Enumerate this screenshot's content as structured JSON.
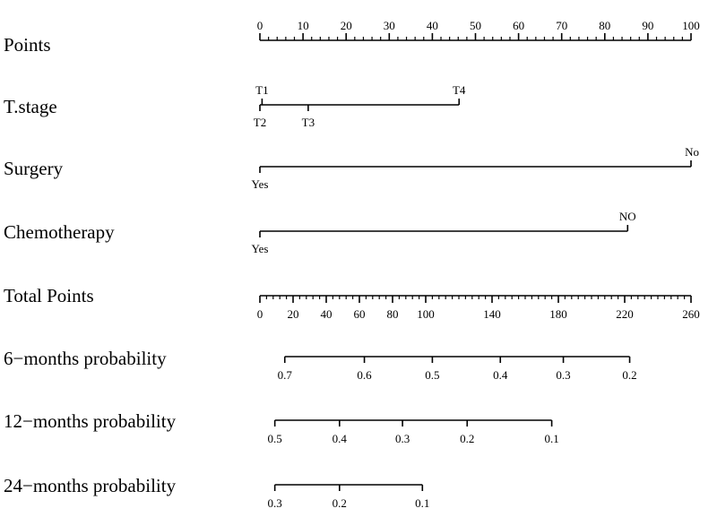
{
  "chart_data": {
    "type": "nomogram",
    "rows": [
      {
        "key": "points",
        "label": "Points",
        "kind": "points-scale",
        "range": [
          0,
          100
        ],
        "tick_labels": [
          0,
          10,
          20,
          30,
          40,
          50,
          60,
          70,
          80,
          90,
          100
        ]
      },
      {
        "key": "tstage",
        "label": "T.stage",
        "kind": "categorical",
        "levels": [
          {
            "name": "T1",
            "points": 0.5,
            "side": "above"
          },
          {
            "name": "T2",
            "points": 0,
            "side": "below"
          },
          {
            "name": "T3",
            "points": 11.2,
            "side": "below"
          },
          {
            "name": "T4",
            "points": 46.2,
            "side": "above"
          }
        ]
      },
      {
        "key": "surgery",
        "label": "Surgery",
        "kind": "categorical",
        "levels": [
          {
            "name": "Yes",
            "points": 0,
            "side": "below"
          },
          {
            "name": "No",
            "points": 100,
            "side": "above"
          }
        ]
      },
      {
        "key": "chemo",
        "label": "Chemotherapy",
        "kind": "categorical",
        "levels": [
          {
            "name": "Yes",
            "points": 0,
            "side": "below"
          },
          {
            "name": "NO",
            "points": 85.3,
            "side": "above"
          }
        ]
      },
      {
        "key": "total",
        "label": "Total Points",
        "kind": "total-scale",
        "range": [
          0,
          260
        ],
        "tick_labels": [
          0,
          20,
          40,
          60,
          80,
          100,
          140,
          180,
          220,
          260
        ]
      },
      {
        "key": "p6",
        "label": "6−months probability",
        "kind": "probability",
        "ticks": [
          {
            "label": "0.7",
            "total": 15
          },
          {
            "label": "0.6",
            "total": 63
          },
          {
            "label": "0.5",
            "total": 104
          },
          {
            "label": "0.4",
            "total": 145
          },
          {
            "label": "0.3",
            "total": 183
          },
          {
            "label": "0.2",
            "total": 223
          }
        ]
      },
      {
        "key": "p12",
        "label": "12−months probability",
        "kind": "probability",
        "ticks": [
          {
            "label": "0.5",
            "total": 9
          },
          {
            "label": "0.4",
            "total": 48
          },
          {
            "label": "0.3",
            "total": 86
          },
          {
            "label": "0.2",
            "total": 125
          },
          {
            "label": "0.1",
            "total": 176
          }
        ]
      },
      {
        "key": "p24",
        "label": "24−months probability",
        "kind": "probability",
        "ticks": [
          {
            "label": "0.3",
            "total": 9
          },
          {
            "label": "0.2",
            "total": 48
          },
          {
            "label": "0.1",
            "total": 98
          }
        ]
      }
    ]
  }
}
